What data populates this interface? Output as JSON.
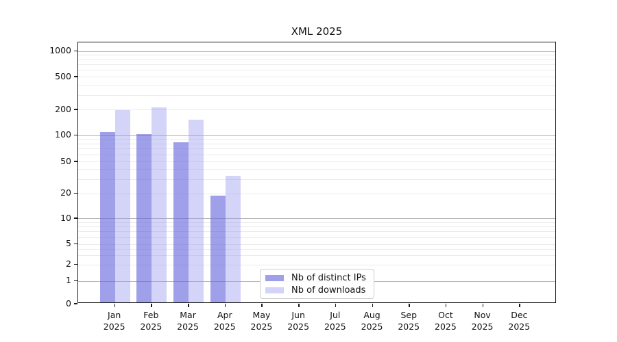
{
  "chart_data": {
    "type": "bar",
    "title": "XML 2025",
    "categories": [
      "Jan",
      "Feb",
      "Mar",
      "Apr",
      "May",
      "Jun",
      "Jul",
      "Aug",
      "Sep",
      "Oct",
      "Nov",
      "Dec"
    ],
    "x_tick_year": "2025",
    "series": [
      {
        "name": "Nb of distinct IPs",
        "key": "distinct-ips",
        "fill": "rgba(102,102,221,0.62)",
        "rendered_color": "#a6a6f0",
        "values": [
          105,
          100,
          80,
          18,
          null,
          null,
          null,
          null,
          null,
          null,
          null,
          null
        ]
      },
      {
        "name": "Nb of downloads",
        "key": "downloads",
        "fill": "rgba(153,153,238,0.42)",
        "rendered_color": "#d8d8f8",
        "values": [
          190,
          205,
          145,
          32,
          null,
          null,
          null,
          null,
          null,
          null,
          null,
          null
        ]
      }
    ],
    "y_axis": {
      "scale": "symlog",
      "tick_labels": [
        0,
        1,
        2,
        5,
        10,
        20,
        50,
        100,
        200,
        500,
        1000
      ],
      "major_gridlines": [
        1,
        10,
        100,
        1000
      ],
      "minor_gridlines": [
        2,
        3,
        4,
        5,
        6,
        7,
        8,
        9,
        20,
        30,
        40,
        50,
        60,
        70,
        80,
        90,
        200,
        300,
        400,
        500,
        600,
        700,
        800,
        900
      ],
      "range_top_approx": 1300
    },
    "legend_position": "lower center",
    "grid": true,
    "colors": {
      "major_grid": "#b5b5b5",
      "minor_grid": "#ebebeb",
      "spine": "#1a1a1a",
      "text": "#111111"
    }
  }
}
